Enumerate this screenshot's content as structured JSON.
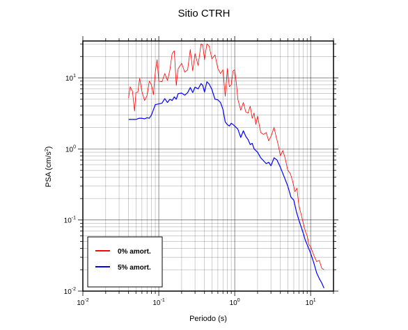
{
  "chart_data": {
    "type": "line",
    "title": "Sitio CTRH",
    "xlabel": "Periodo (s)",
    "ylabel_base": "PSA (cm/s",
    "ylabel_exp": "2",
    "ylabel_close": ")",
    "x_scale": "log",
    "y_scale": "log",
    "xlim": [
      0.01,
      20
    ],
    "ylim": [
      0.01,
      33
    ],
    "grid": true,
    "legend_position": "bottom-left",
    "x_ticks": [
      {
        "base": "10",
        "exp": "-2",
        "value": 0.01
      },
      {
        "base": "10",
        "exp": "-1",
        "value": 0.1
      },
      {
        "base": "10",
        "exp": "0",
        "value": 1
      },
      {
        "base": "10",
        "exp": "1",
        "value": 10
      }
    ],
    "y_ticks": [
      {
        "base": "10",
        "exp": "-2",
        "value": 0.01
      },
      {
        "base": "10",
        "exp": "-1",
        "value": 0.1
      },
      {
        "base": "10",
        "exp": "0",
        "value": 1
      },
      {
        "base": "10",
        "exp": "1",
        "value": 10
      }
    ],
    "series": [
      {
        "name": "0% amort.",
        "color": "#ff0000",
        "width": 0.8,
        "points": [
          [
            0.04,
            5.2
          ],
          [
            0.042,
            7.5
          ],
          [
            0.045,
            6.5
          ],
          [
            0.048,
            3.4
          ],
          [
            0.05,
            6.2
          ],
          [
            0.053,
            6.3
          ],
          [
            0.056,
            9.8
          ],
          [
            0.06,
            6.4
          ],
          [
            0.065,
            4.8
          ],
          [
            0.07,
            5.6
          ],
          [
            0.075,
            9.0
          ],
          [
            0.08,
            8.0
          ],
          [
            0.085,
            5.8
          ],
          [
            0.09,
            12.0
          ],
          [
            0.095,
            18.0
          ],
          [
            0.1,
            9.0
          ],
          [
            0.11,
            8.8
          ],
          [
            0.12,
            11.5
          ],
          [
            0.13,
            9.2
          ],
          [
            0.14,
            12.8
          ],
          [
            0.15,
            22.0
          ],
          [
            0.16,
            24.0
          ],
          [
            0.17,
            7.8
          ],
          [
            0.18,
            13.5
          ],
          [
            0.2,
            16.0
          ],
          [
            0.22,
            12.0
          ],
          [
            0.24,
            13.0
          ],
          [
            0.26,
            25.0
          ],
          [
            0.28,
            12.5
          ],
          [
            0.3,
            22.0
          ],
          [
            0.33,
            15.0
          ],
          [
            0.36,
            30.0
          ],
          [
            0.38,
            29.0
          ],
          [
            0.4,
            18.0
          ],
          [
            0.43,
            30.0
          ],
          [
            0.46,
            28.0
          ],
          [
            0.5,
            18.5
          ],
          [
            0.55,
            21.0
          ],
          [
            0.6,
            13.5
          ],
          [
            0.65,
            11.5
          ],
          [
            0.7,
            13.0
          ],
          [
            0.75,
            5.5
          ],
          [
            0.8,
            13.5
          ],
          [
            0.85,
            7.5
          ],
          [
            0.9,
            8.0
          ],
          [
            0.95,
            12.5
          ],
          [
            1.0,
            13.0
          ],
          [
            1.05,
            8.5
          ],
          [
            1.1,
            5.0
          ],
          [
            1.2,
            3.5
          ],
          [
            1.3,
            4.5
          ],
          [
            1.4,
            3.3
          ],
          [
            1.5,
            3.2
          ],
          [
            1.6,
            4.0
          ],
          [
            1.7,
            2.7
          ],
          [
            1.8,
            3.2
          ],
          [
            1.9,
            2.2
          ],
          [
            2.0,
            2.9
          ],
          [
            2.2,
            1.7
          ],
          [
            2.4,
            1.6
          ],
          [
            2.6,
            1.7
          ],
          [
            2.8,
            1.3
          ],
          [
            3.0,
            1.5
          ],
          [
            3.3,
            2.0
          ],
          [
            3.5,
            1.5
          ],
          [
            3.7,
            1.2
          ],
          [
            4.0,
            0.8
          ],
          [
            4.3,
            0.95
          ],
          [
            4.6,
            0.75
          ],
          [
            5.0,
            0.5
          ],
          [
            5.4,
            0.45
          ],
          [
            5.8,
            0.35
          ],
          [
            6.2,
            0.25
          ],
          [
            6.6,
            0.28
          ],
          [
            7.0,
            0.16
          ],
          [
            7.5,
            0.12
          ],
          [
            8.0,
            0.09
          ],
          [
            8.5,
            0.07
          ],
          [
            9.0,
            0.06
          ],
          [
            9.5,
            0.045
          ],
          [
            10.0,
            0.042
          ],
          [
            11.0,
            0.032
          ],
          [
            12.0,
            0.026
          ],
          [
            13.0,
            0.027
          ],
          [
            14.0,
            0.021
          ],
          [
            15.0,
            0.02
          ]
        ]
      },
      {
        "name": "5% amort.",
        "color": "#0000ff",
        "width": 1.2,
        "points": [
          [
            0.04,
            2.6
          ],
          [
            0.045,
            2.6
          ],
          [
            0.05,
            2.6
          ],
          [
            0.055,
            2.7
          ],
          [
            0.06,
            2.7
          ],
          [
            0.065,
            2.65
          ],
          [
            0.07,
            2.75
          ],
          [
            0.075,
            2.7
          ],
          [
            0.08,
            3.0
          ],
          [
            0.09,
            4.2
          ],
          [
            0.1,
            4.3
          ],
          [
            0.11,
            4.4
          ],
          [
            0.12,
            5.1
          ],
          [
            0.13,
            4.5
          ],
          [
            0.14,
            5.0
          ],
          [
            0.15,
            4.8
          ],
          [
            0.16,
            5.4
          ],
          [
            0.17,
            5.0
          ],
          [
            0.18,
            6.0
          ],
          [
            0.2,
            6.1
          ],
          [
            0.22,
            5.7
          ],
          [
            0.24,
            6.2
          ],
          [
            0.26,
            7.3
          ],
          [
            0.28,
            6.2
          ],
          [
            0.3,
            7.4
          ],
          [
            0.33,
            7.0
          ],
          [
            0.36,
            8.3
          ],
          [
            0.38,
            7.8
          ],
          [
            0.4,
            6.3
          ],
          [
            0.43,
            8.8
          ],
          [
            0.46,
            8.2
          ],
          [
            0.5,
            6.9
          ],
          [
            0.55,
            5.0
          ],
          [
            0.6,
            4.9
          ],
          [
            0.65,
            4.5
          ],
          [
            0.7,
            3.6
          ],
          [
            0.75,
            2.4
          ],
          [
            0.8,
            2.2
          ],
          [
            0.85,
            2.1
          ],
          [
            0.9,
            2.3
          ],
          [
            0.95,
            2.2
          ],
          [
            1.0,
            2.1
          ],
          [
            1.1,
            1.9
          ],
          [
            1.2,
            1.45
          ],
          [
            1.3,
            1.8
          ],
          [
            1.4,
            1.5
          ],
          [
            1.5,
            1.35
          ],
          [
            1.6,
            1.15
          ],
          [
            1.7,
            1.2
          ],
          [
            1.8,
            1.0
          ],
          [
            2.0,
            0.9
          ],
          [
            2.2,
            0.75
          ],
          [
            2.4,
            0.68
          ],
          [
            2.6,
            0.62
          ],
          [
            2.8,
            0.65
          ],
          [
            3.0,
            0.58
          ],
          [
            3.3,
            0.75
          ],
          [
            3.6,
            0.7
          ],
          [
            4.0,
            0.55
          ],
          [
            4.5,
            0.4
          ],
          [
            5.0,
            0.3
          ],
          [
            5.5,
            0.21
          ],
          [
            6.0,
            0.19
          ],
          [
            6.5,
            0.13
          ],
          [
            7.0,
            0.1
          ],
          [
            7.5,
            0.08
          ],
          [
            8.0,
            0.065
          ],
          [
            8.5,
            0.052
          ],
          [
            9.0,
            0.045
          ],
          [
            10.0,
            0.034
          ],
          [
            11.0,
            0.025
          ],
          [
            12.0,
            0.018
          ],
          [
            13.0,
            0.015
          ],
          [
            14.0,
            0.013
          ],
          [
            15.0,
            0.011
          ]
        ]
      }
    ]
  }
}
